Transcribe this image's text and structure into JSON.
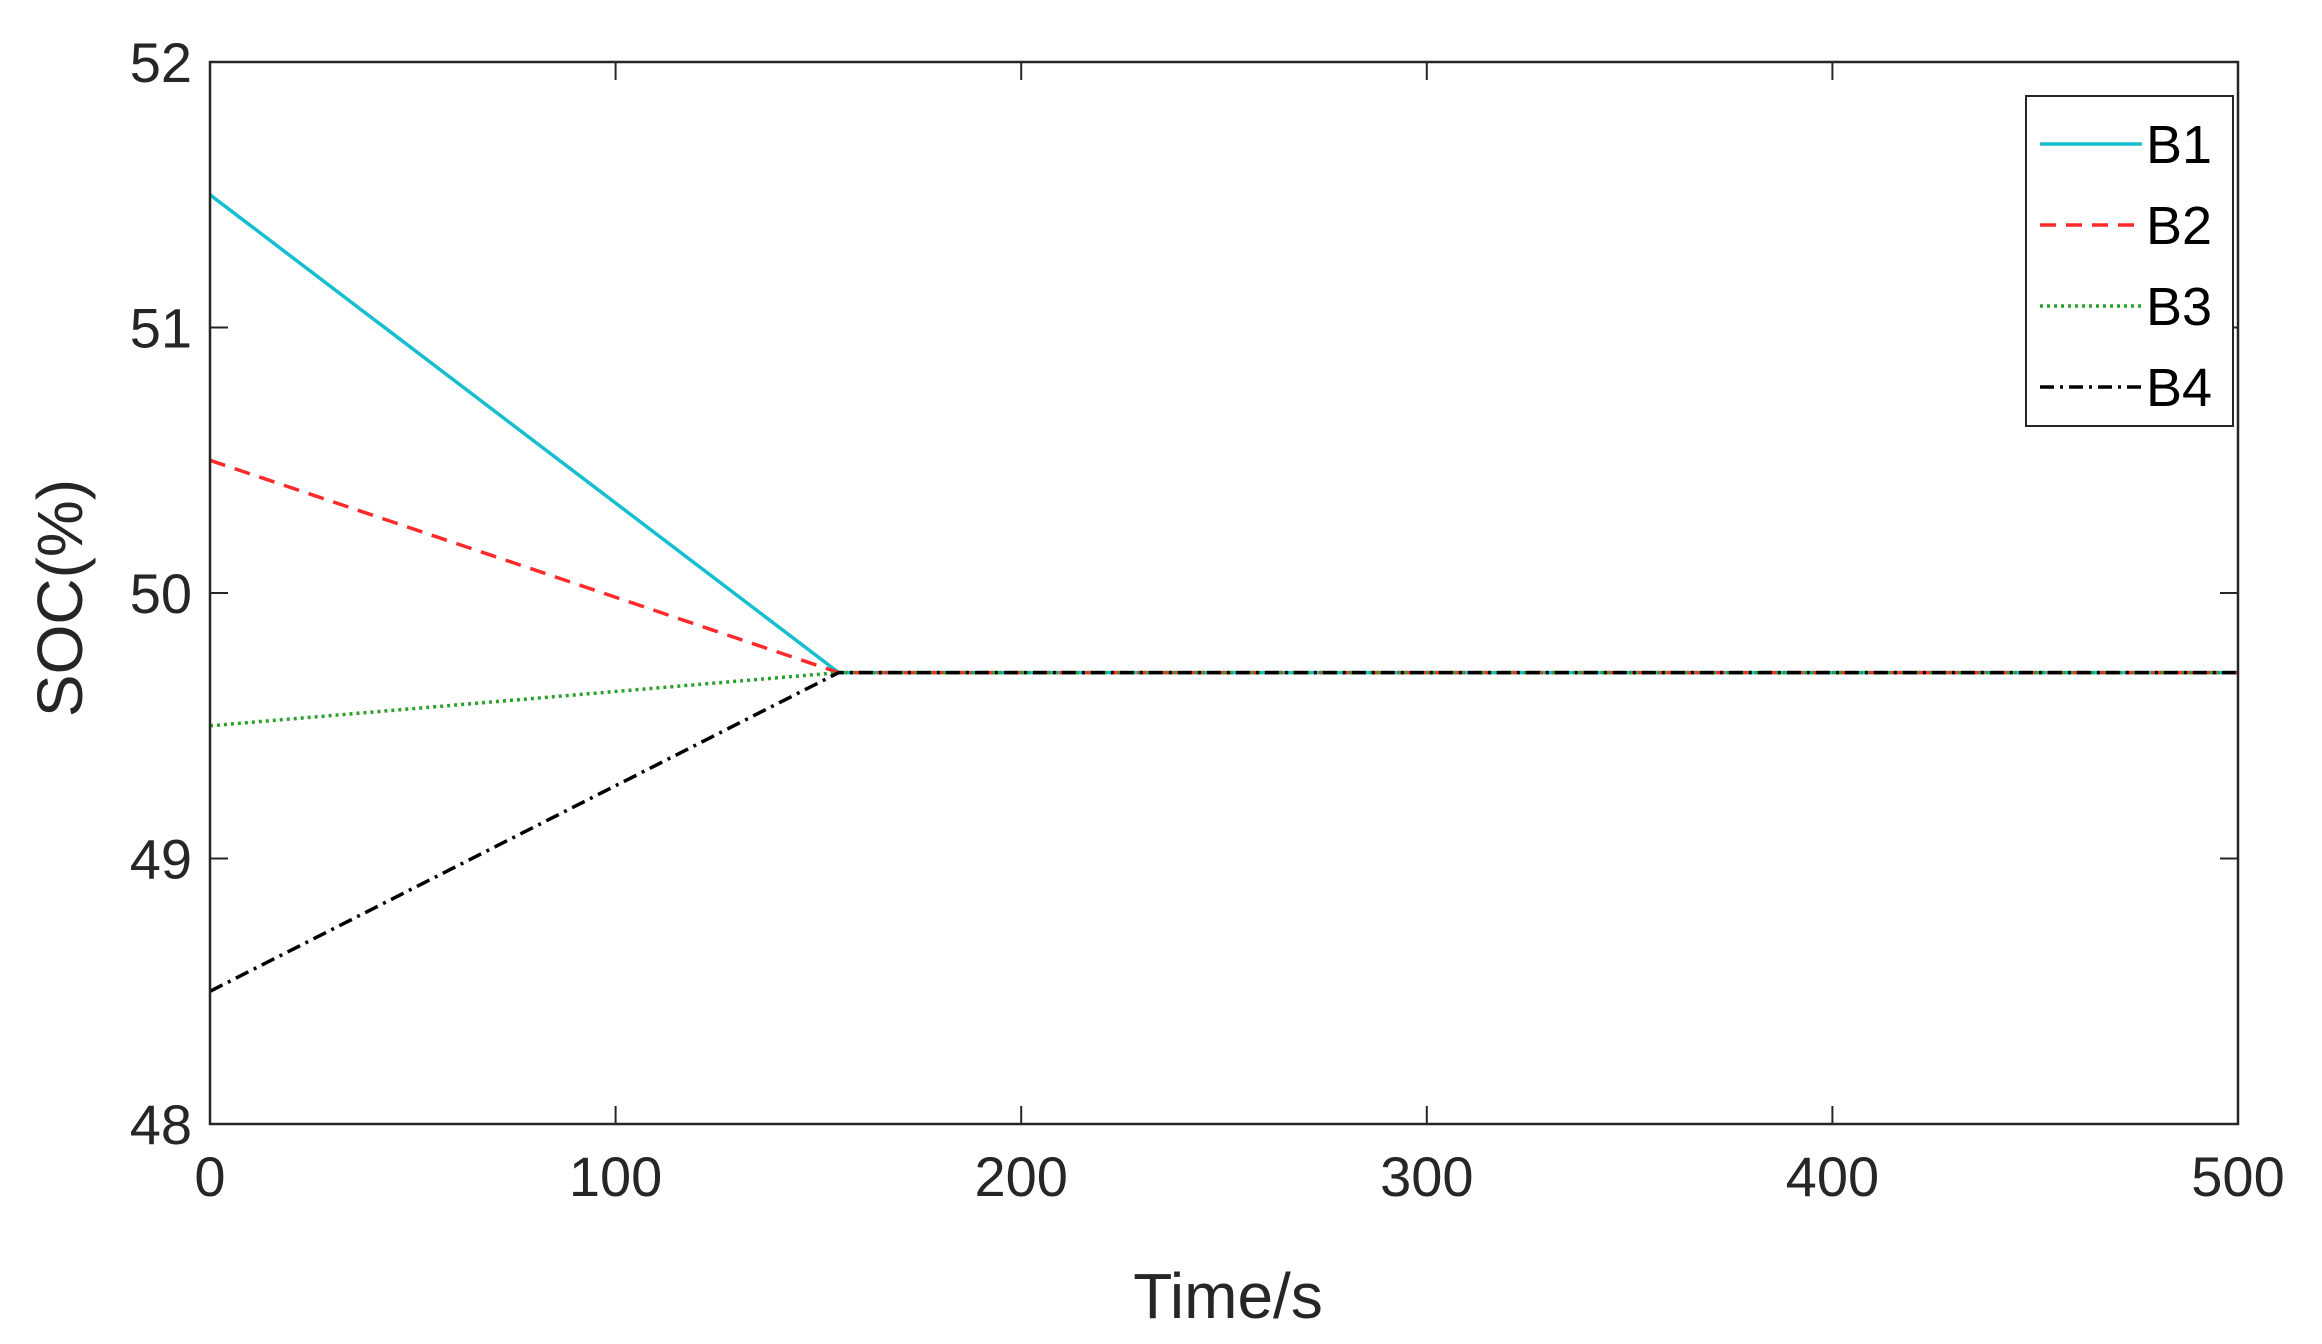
{
  "chart_data": {
    "type": "line",
    "title": "",
    "xlabel": "Time/s",
    "ylabel": "SOC(%)",
    "xlim": [
      0,
      500
    ],
    "ylim": [
      48,
      52
    ],
    "xticks": [
      0,
      100,
      200,
      300,
      400,
      500
    ],
    "yticks": [
      48,
      49,
      50,
      51,
      52
    ],
    "xtick_labels": [
      "0",
      "100",
      "200",
      "300",
      "400",
      "500"
    ],
    "ytick_labels": [
      "48",
      "49",
      "50",
      "51",
      "52"
    ],
    "grid": false,
    "legend_position": "top-right",
    "series": [
      {
        "name": "B1",
        "color": "#17BECF",
        "style": "solid",
        "x": [
          0,
          155,
          500
        ],
        "y": [
          51.5,
          49.7,
          49.7
        ]
      },
      {
        "name": "B2",
        "color": "#FF2A2A",
        "style": "dashed",
        "x": [
          0,
          155,
          500
        ],
        "y": [
          50.5,
          49.7,
          49.7
        ]
      },
      {
        "name": "B3",
        "color": "#2CA02C",
        "style": "dotted",
        "x": [
          0,
          155,
          500
        ],
        "y": [
          49.5,
          49.7,
          49.7
        ]
      },
      {
        "name": "B4",
        "color": "#000000",
        "style": "dashdot",
        "x": [
          0,
          155,
          500
        ],
        "y": [
          48.5,
          49.7,
          49.7
        ]
      }
    ]
  }
}
